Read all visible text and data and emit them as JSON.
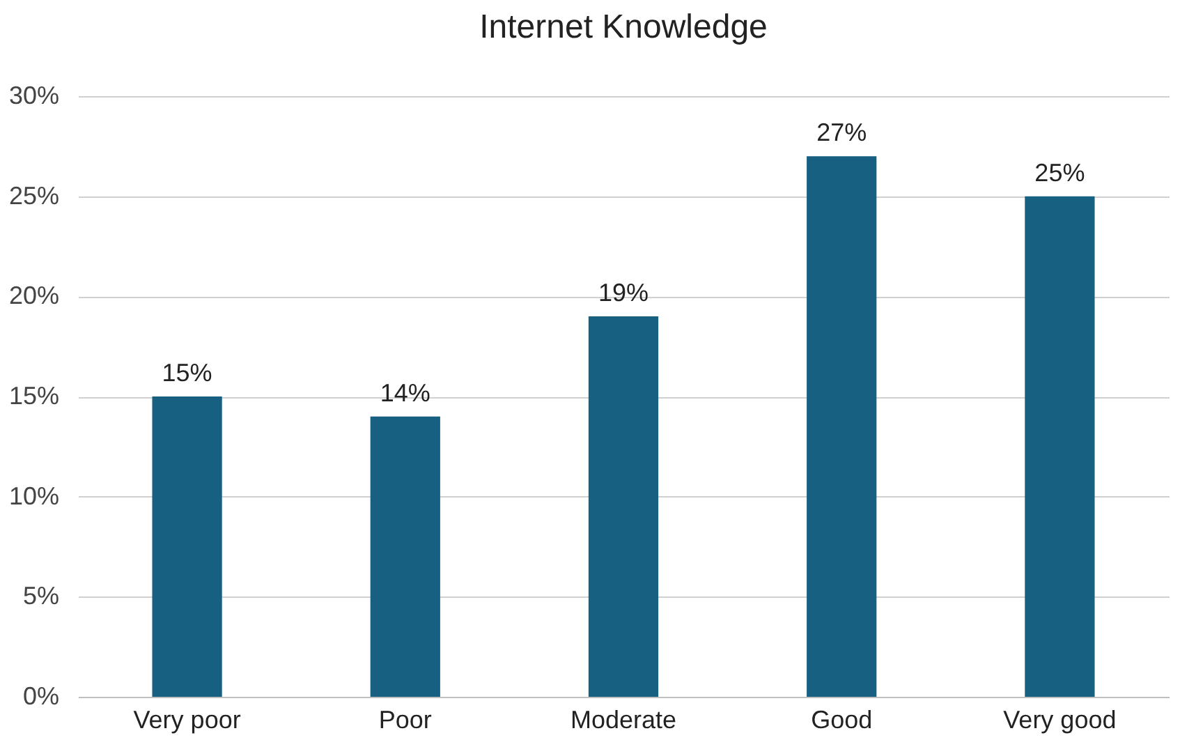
{
  "chart_data": {
    "type": "bar",
    "title": "Internet Knowledge",
    "categories": [
      "Very poor",
      "Poor",
      "Moderate",
      "Good",
      "Very good"
    ],
    "values": [
      15,
      14,
      19,
      27,
      25
    ],
    "value_labels": [
      "15%",
      "14%",
      "19%",
      "27%",
      "25%"
    ],
    "color": "#176082",
    "ylim": [
      0,
      30
    ],
    "yticks": [
      {
        "value": 0,
        "label": "0%"
      },
      {
        "value": 5,
        "label": "5%"
      },
      {
        "value": 10,
        "label": "10%"
      },
      {
        "value": 15,
        "label": "15%"
      },
      {
        "value": 20,
        "label": "20%"
      },
      {
        "value": 25,
        "label": "25%"
      },
      {
        "value": 30,
        "label": "30%"
      }
    ],
    "grid": "y"
  }
}
